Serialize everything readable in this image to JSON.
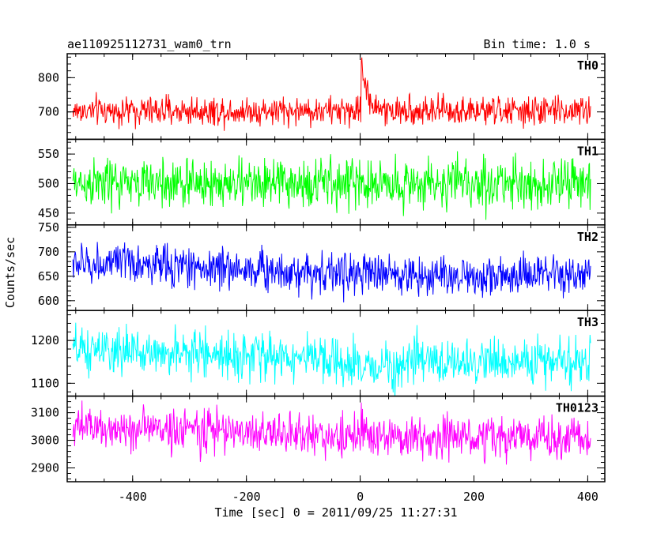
{
  "header": {
    "left_title": "ae110925112731_wam0_trn",
    "right_title": "Bin time: 1.0 s"
  },
  "chart_data": {
    "type": "line",
    "title": "ae110925112731_wam0_trn",
    "subtitle": "Bin time: 1.0 s",
    "xlabel": "Time [sec] 0 = 2011/09/25 11:27:31",
    "ylabel": "Counts/sec",
    "xlim": [
      -515,
      430
    ],
    "x_ticks": [
      -400,
      -200,
      0,
      200,
      400
    ],
    "x_range": [
      -505,
      405
    ],
    "bin_time_s": 1.0,
    "grid": false,
    "panels": [
      {
        "name": "TH0",
        "color": "#ff0000",
        "ylim": [
          620,
          870
        ],
        "y_ticks": [
          700,
          800
        ],
        "mean": 703,
        "noise": 30,
        "slow_trend": [
          [
            -505,
            703
          ],
          [
            -100,
            703
          ],
          [
            0,
            703
          ],
          [
            405,
            703
          ]
        ],
        "burst": {
          "t0": 2,
          "peak": 870,
          "decay_s": 10
        }
      },
      {
        "name": "TH1",
        "color": "#00ff00",
        "ylim": [
          430,
          575
        ],
        "y_ticks": [
          450,
          500,
          550
        ],
        "mean": 500,
        "noise": 30,
        "slow_trend": [
          [
            -505,
            500
          ],
          [
            405,
            500
          ]
        ],
        "burst": null
      },
      {
        "name": "TH2",
        "color": "#0000ff",
        "ylim": [
          580,
          755
        ],
        "y_ticks": [
          600,
          650,
          700,
          750
        ],
        "mean": 662,
        "noise": 30,
        "slow_trend": [
          [
            -505,
            675
          ],
          [
            -400,
            675
          ],
          [
            -200,
            665
          ],
          [
            0,
            655
          ],
          [
            200,
            650
          ],
          [
            405,
            650
          ]
        ],
        "burst": null
      },
      {
        "name": "TH3",
        "color": "#00ffff",
        "ylim": [
          1070,
          1270
        ],
        "y_ticks": [
          1100,
          1200
        ],
        "mean": 1160,
        "noise": 38,
        "slow_trend": [
          [
            -505,
            1175
          ],
          [
            -300,
            1170
          ],
          [
            -100,
            1160
          ],
          [
            0,
            1135
          ],
          [
            100,
            1150
          ],
          [
            405,
            1150
          ]
        ],
        "burst": null
      },
      {
        "name": "TH0123",
        "color": "#ff00ff",
        "ylim": [
          2850,
          3160
        ],
        "y_ticks": [
          2900,
          3000,
          3100
        ],
        "mean": 3025,
        "noise": 55,
        "slow_trend": [
          [
            -505,
            3045
          ],
          [
            -300,
            3040
          ],
          [
            -100,
            3020
          ],
          [
            0,
            3010
          ],
          [
            200,
            3010
          ],
          [
            405,
            3010
          ]
        ],
        "burst": {
          "t0": 2,
          "peak": 3110,
          "decay_s": 6
        }
      }
    ]
  }
}
